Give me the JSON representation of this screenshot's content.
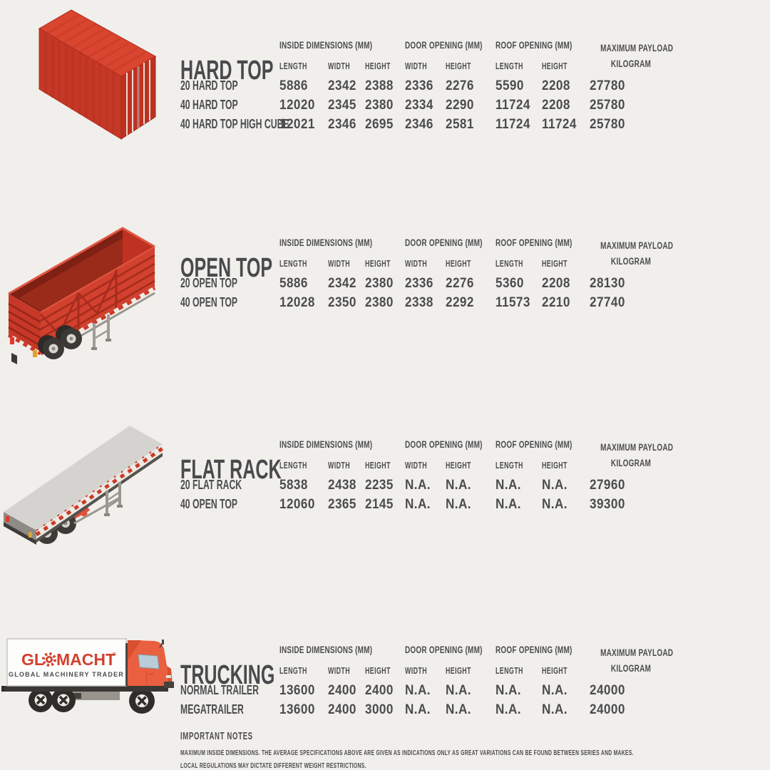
{
  "colors": {
    "background": "#f0efec",
    "text": "#4c4c4e",
    "brand_red": "#d2402e",
    "red_dark": "#b5301f",
    "interior_maroon": "#7e2014",
    "platform_gray": "#d4d3cf",
    "cab_orange": "#ea5f40",
    "chassis_dark": "#3a3734"
  },
  "icons": {
    "hard_top": "container-isometric-icon",
    "open_top": "open-top-trailer-icon",
    "flat_rack": "flat-rack-trailer-icon",
    "trucking": "box-truck-icon",
    "logo_gear": "gear-icon"
  },
  "columns": {
    "groups": [
      {
        "label": "INSIDE DIMENSIONS (MM)",
        "span": 3
      },
      {
        "label": "DOOR OPENING (MM)",
        "span": 2
      },
      {
        "label": "ROOF OPENING (MM)",
        "span": 2
      },
      {
        "label": "MAXIMUM PAYLOAD",
        "label2": "KILOGRAM",
        "span": 1
      }
    ],
    "subheaders": [
      "LENGTH",
      "WIDTH",
      "HEIGHT",
      "WIDTH",
      "HEIGHT",
      "LENGTH",
      "HEIGHT"
    ]
  },
  "sections": [
    {
      "title": "HARD TOP",
      "rows": [
        {
          "label": "20 HARD TOP",
          "values": [
            "5886",
            "2342",
            "2388",
            "2336",
            "2276",
            "5590",
            "2208",
            "27780"
          ]
        },
        {
          "label": "40 HARD TOP",
          "values": [
            "12020",
            "2345",
            "2380",
            "2334",
            "2290",
            "11724",
            "2208",
            "25780"
          ]
        },
        {
          "label": "40 HARD TOP HIGH CUBE",
          "values": [
            "12021",
            "2346",
            "2695",
            "2346",
            "2581",
            "11724",
            "11724",
            "25780"
          ]
        }
      ]
    },
    {
      "title": "OPEN TOP",
      "rows": [
        {
          "label": "20 OPEN TOP",
          "values": [
            "5886",
            "2342",
            "2380",
            "2336",
            "2276",
            "5360",
            "2208",
            "28130"
          ]
        },
        {
          "label": "40 OPEN TOP",
          "values": [
            "12028",
            "2350",
            "2380",
            "2338",
            "2292",
            "11573",
            "2210",
            "27740"
          ]
        }
      ]
    },
    {
      "title": "FLAT RACK",
      "rows": [
        {
          "label": "20 FLAT RACK",
          "values": [
            "5838",
            "2438",
            "2235",
            "N.A.",
            "N.A.",
            "N.A.",
            "N.A.",
            "27960"
          ]
        },
        {
          "label": "40 OPEN TOP",
          "values": [
            "12060",
            "2365",
            "2145",
            "N.A.",
            "N.A.",
            "N.A.",
            "N.A.",
            "39300"
          ]
        }
      ]
    },
    {
      "title": "TRUCKING",
      "rows": [
        {
          "label": "NORMAL TRAILER",
          "values": [
            "13600",
            "2400",
            "2400",
            "N.A.",
            "N.A.",
            "N.A.",
            "N.A.",
            "24000"
          ]
        },
        {
          "label": "MEGATRAILER",
          "values": [
            "13600",
            "2400",
            "3000",
            "N.A.",
            "N.A.",
            "N.A.",
            "N.A.",
            "24000"
          ]
        }
      ]
    }
  ],
  "logo": {
    "text": "GLOMACHT",
    "prefix": "GL",
    "suffix": "MACHT",
    "tm": "™",
    "tagline": "GLOBAL MACHINERY TRADER"
  },
  "notes": {
    "title": "IMPORTANT NOTES",
    "lines": [
      "MAXIMUM INSIDE DIMENSIONS. THE AVERAGE SPECIFICATIONS ABOVE ARE GIVEN AS INDICATIONS ONLY AS GREAT VARIATIONS CAN BE FOUND BETWEEN SERIES AND MAKES.",
      "LOCAL REGULATIONS MAY DICTATE DIFFERENT WEIGHT RESTRICTIONS."
    ]
  }
}
